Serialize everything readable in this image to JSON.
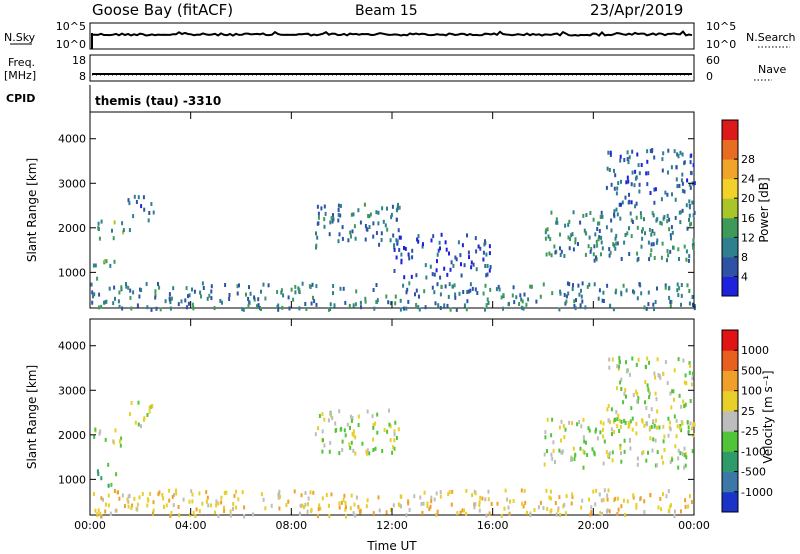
{
  "header": {
    "station": "Goose Bay (fitACF)",
    "beam": "Beam 15",
    "date": "23/Apr/2019"
  },
  "status_panels": {
    "nsky_label": "N.Sky",
    "nsky_ticks": [
      "10^5",
      "10^0"
    ],
    "nsearch_label": "N.Search",
    "nsearch_ticks": [
      "10^5",
      "10^0"
    ],
    "freq_label": "Freq.",
    "freq_unit": "[MHz]",
    "freq_ticks": [
      "18",
      "8"
    ],
    "nave_label": "Nave",
    "nave_ticks": [
      "60",
      "0"
    ],
    "cpid_label": "CPID",
    "cpid_text": "themis (tau) -3310"
  },
  "chart_data": [
    {
      "type": "heatmap",
      "name": "power",
      "ylabel": "Slant Range [km]",
      "ylim": [
        200,
        4600
      ],
      "yticks": [
        1000,
        2000,
        3000,
        4000
      ],
      "xticks": [
        "00:00",
        "04:00",
        "08:00",
        "12:00",
        "16:00",
        "20:00",
        "00:00"
      ],
      "colorbar": {
        "label": "Power [dB]",
        "range": [
          0,
          32
        ],
        "ticks": [
          "4",
          "8",
          "12",
          "16",
          "20",
          "24",
          "28"
        ],
        "colors": [
          "#1f22dd",
          "#2e53a6",
          "#2f7f8e",
          "#3f9a5a",
          "#a9c52a",
          "#f1d12a",
          "#f0a52a",
          "#e86d22",
          "#dd1a1a"
        ]
      },
      "echo_bands": [
        {
          "t": [
            0.1,
            1.6
          ],
          "range": [
            1800,
            2200
          ],
          "level": 12
        },
        {
          "t": [
            0.1,
            1.0
          ],
          "range": [
            900,
            1400
          ],
          "level": 14
        },
        {
          "t": [
            1.4,
            2.6
          ],
          "range": [
            2200,
            2800
          ],
          "level": 8
        },
        {
          "t": [
            8.9,
            12.3
          ],
          "range": [
            1600,
            2600
          ],
          "level": 9
        },
        {
          "t": [
            12.0,
            16.0
          ],
          "range": [
            900,
            1900
          ],
          "level": 5
        },
        {
          "t": [
            18.0,
            24.0
          ],
          "range": [
            1300,
            2400
          ],
          "level": 11
        },
        {
          "t": [
            20.5,
            24.0
          ],
          "range": [
            2200,
            3800
          ],
          "level": 7
        },
        {
          "t": [
            0.0,
            24.0
          ],
          "range": [
            200,
            800
          ],
          "level": 10
        }
      ]
    },
    {
      "type": "heatmap",
      "name": "velocity",
      "xlabel": "Time UT",
      "ylabel": "Slant Range [km]",
      "ylim": [
        200,
        4600
      ],
      "yticks": [
        1000,
        2000,
        3000,
        4000
      ],
      "xticks": [
        "00:00",
        "04:00",
        "08:00",
        "12:00",
        "16:00",
        "20:00",
        "00:00"
      ],
      "colorbar": {
        "label": "Velocity [m s⁻¹]",
        "ticks": [
          "1000",
          "500",
          "100",
          "25",
          "-25",
          "-100",
          "-500",
          "-1000"
        ],
        "colors": [
          "#1a34c8",
          "#3b78a8",
          "#2f9b6b",
          "#52c43a",
          "#bdbdbd",
          "#e8cf2a",
          "#f0a02a",
          "#e8601e",
          "#e01414"
        ]
      },
      "echo_bands": [
        {
          "t": [
            0.1,
            1.6
          ],
          "range": [
            1800,
            2200
          ],
          "level": 0
        },
        {
          "t": [
            0.1,
            1.0
          ],
          "range": [
            900,
            1400
          ],
          "level": 120
        },
        {
          "t": [
            1.4,
            2.6
          ],
          "range": [
            2200,
            2800
          ],
          "level": 0
        },
        {
          "t": [
            8.9,
            12.3
          ],
          "range": [
            1600,
            2600
          ],
          "level": 0
        },
        {
          "t": [
            18.0,
            24.0
          ],
          "range": [
            1300,
            2400
          ],
          "level": 0
        },
        {
          "t": [
            20.5,
            24.0
          ],
          "range": [
            2200,
            3800
          ],
          "level": 0
        },
        {
          "t": [
            0.0,
            24.0
          ],
          "range": [
            200,
            800
          ],
          "level": -60
        }
      ]
    }
  ]
}
